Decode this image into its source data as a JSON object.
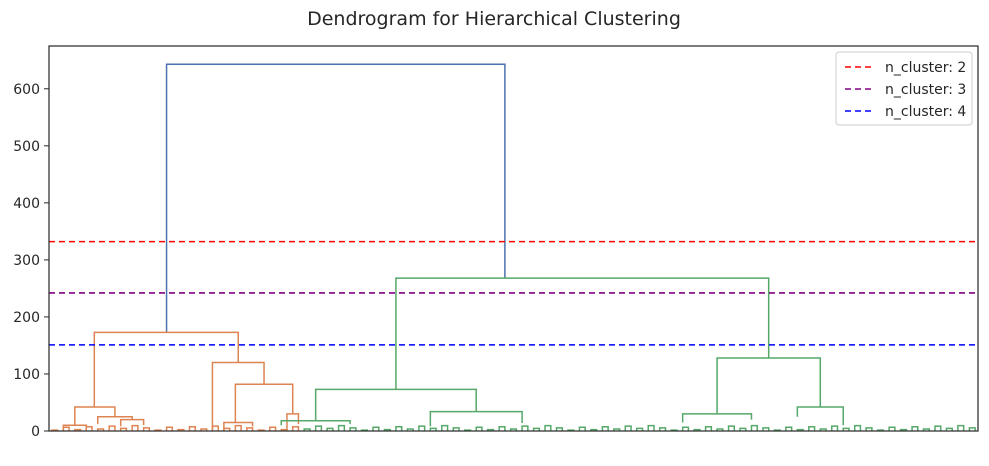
{
  "chart_data": {
    "type": "dendrogram",
    "title": "Dendrogram for Hierarchical Clustering",
    "xlabel": "",
    "ylabel": "",
    "ylim": [
      0,
      675
    ],
    "yticks": [
      0,
      100,
      200,
      300,
      400,
      500,
      600
    ],
    "grid": false,
    "legend_position": "top-right",
    "leaf_count": 162,
    "colors": {
      "root": "#4c72b0",
      "cluster_orange": "#dd8452",
      "cluster_green": "#55a868"
    },
    "thresholds": [
      {
        "label": "n_cluster: 2",
        "value": 332,
        "color": "#ff0000"
      },
      {
        "label": "n_cluster: 3",
        "value": 242,
        "color": "#800080"
      },
      {
        "label": "n_cluster: 4",
        "value": 151,
        "color": "#0000ff"
      }
    ],
    "merges": [
      {
        "color": "root",
        "left": 20,
        "right": 79,
        "height": 643,
        "left_base": 173,
        "right_base": 268
      },
      {
        "color": "orange",
        "left": 7.4,
        "right": 32.5,
        "height": 173,
        "left_base": 42,
        "right_base": 120
      },
      {
        "color": "orange",
        "left": 28,
        "right": 37,
        "height": 120,
        "left_base": 0,
        "right_base": 82
      },
      {
        "color": "orange",
        "left": 32,
        "right": 42,
        "height": 82,
        "left_base": 15,
        "right_base": 30
      },
      {
        "color": "orange",
        "left": 4,
        "right": 11,
        "height": 42,
        "left_base": 10,
        "right_base": 25
      },
      {
        "color": "orange",
        "left": 8,
        "right": 14,
        "height": 25,
        "left_base": 12,
        "right_base": 20
      },
      {
        "color": "orange",
        "left": 12,
        "right": 16,
        "height": 20,
        "left_base": 8,
        "right_base": 10
      },
      {
        "color": "orange",
        "left": 2,
        "right": 6,
        "height": 10,
        "left_base": 0,
        "right_base": 5
      },
      {
        "color": "orange",
        "left": 41,
        "right": 43,
        "height": 30,
        "left_base": 0,
        "right_base": 12
      },
      {
        "color": "orange",
        "left": 30,
        "right": 35,
        "height": 15,
        "left_base": 0,
        "right_base": 8
      },
      {
        "color": "green",
        "left": 60,
        "right": 125,
        "height": 268,
        "left_base": 73,
        "right_base": 128
      },
      {
        "color": "green",
        "left": 46,
        "right": 74,
        "height": 73,
        "left_base": 18,
        "right_base": 34
      },
      {
        "color": "green",
        "left": 66,
        "right": 82,
        "height": 34,
        "left_base": 8,
        "right_base": 14
      },
      {
        "color": "green",
        "left": 40,
        "right": 52,
        "height": 18,
        "left_base": 10,
        "right_base": 12
      },
      {
        "color": "green",
        "left": 116,
        "right": 134,
        "height": 128,
        "left_base": 30,
        "right_base": 42
      },
      {
        "color": "green",
        "left": 110,
        "right": 122,
        "height": 30,
        "left_base": 15,
        "right_base": 20
      },
      {
        "color": "green",
        "left": 130,
        "right": 138,
        "height": 42,
        "left_base": 25,
        "right_base": 10
      }
    ]
  },
  "legend": {
    "items": [
      {
        "label": "n_cluster: 2",
        "color": "#ff0000"
      },
      {
        "label": "n_cluster: 3",
        "color": "#800080"
      },
      {
        "label": "n_cluster: 4",
        "color": "#0000ff"
      }
    ]
  }
}
